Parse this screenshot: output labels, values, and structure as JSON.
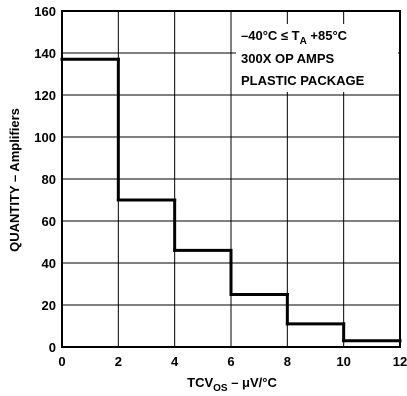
{
  "chart_data": {
    "type": "histogram-step",
    "title": "",
    "xlabel": {
      "main": "TCV",
      "sub": "OS",
      "rest": " – μV/°C"
    },
    "ylabel": "QUANTITY – Amplifiers",
    "xlim": [
      0,
      12
    ],
    "ylim": [
      0,
      160
    ],
    "x_ticks": [
      0,
      2,
      4,
      6,
      8,
      10,
      12
    ],
    "y_ticks": [
      0,
      20,
      40,
      60,
      80,
      100,
      120,
      140,
      160
    ],
    "bins": [
      {
        "x0": 0,
        "x1": 2,
        "value": 137
      },
      {
        "x0": 2,
        "x1": 4,
        "value": 70
      },
      {
        "x0": 4,
        "x1": 6,
        "value": 46
      },
      {
        "x0": 6,
        "x1": 8,
        "value": 25
      },
      {
        "x0": 8,
        "x1": 10,
        "value": 11
      },
      {
        "x0": 10,
        "x1": 12,
        "value": 3
      }
    ],
    "grid": true,
    "legend": "none",
    "annotations": {
      "line1": {
        "pre": "–40°C ≤ T",
        "sub": "A",
        "post": " +85°C"
      },
      "line2": "300X OP AMPS",
      "line3": "PLASTIC PACKAGE"
    },
    "colors": {
      "line": "#000000",
      "grid": "#000000",
      "background": "#ffffff"
    }
  }
}
